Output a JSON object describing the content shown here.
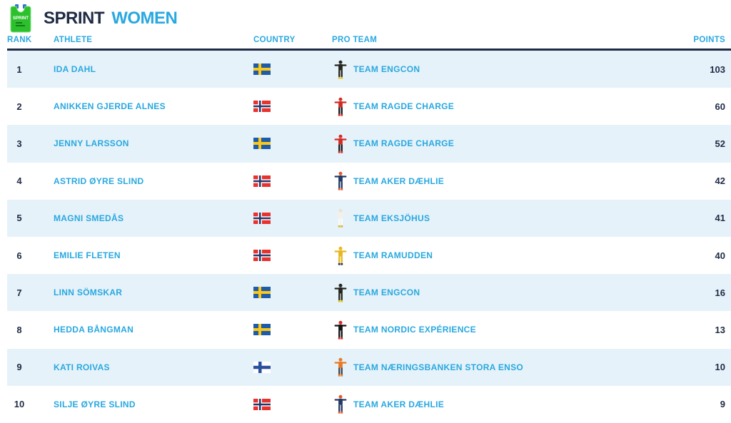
{
  "header": {
    "bib_label": "SPRINT",
    "title_primary": "SPRINT",
    "title_secondary": "WOMEN"
  },
  "colors": {
    "accent_blue": "#29a8e0",
    "navy": "#1f2b45",
    "row_alt_bg": "#e6f2f9",
    "bib_green": "#2cc12c",
    "bib_tab_blue": "#2a6fd6"
  },
  "flags": {
    "sweden": {
      "bg": "#1e5ba8",
      "cross": "#f8c81c"
    },
    "norway": {
      "bg": "#e8322e",
      "outer": "#ffffff",
      "inner": "#26376b"
    },
    "finland": {
      "bg": "#ffffff",
      "cross": "#2b4f9f"
    }
  },
  "table": {
    "columns": [
      "RANK",
      "ATHLETE",
      "COUNTRY",
      "PRO TEAM",
      "POINTS"
    ],
    "rows": [
      {
        "rank": "1",
        "athlete": "IDA DAHL",
        "country": "sweden",
        "team": "TEAM ENGCON",
        "points": "103",
        "icon": {
          "head": "#26261f",
          "torso": "#26261f",
          "legs": "#26261f",
          "feet": "#e5c51f"
        }
      },
      {
        "rank": "2",
        "athlete": "ANIKKEN GJERDE ALNES",
        "country": "norway",
        "team": "TEAM RAGDE CHARGE",
        "points": "60",
        "icon": {
          "head": "#d42b23",
          "torso": "#d42b23",
          "legs": "#17171a",
          "feet": "#d42b23"
        }
      },
      {
        "rank": "3",
        "athlete": "JENNY LARSSON",
        "country": "sweden",
        "team": "TEAM RAGDE CHARGE",
        "points": "52",
        "icon": {
          "head": "#d42b23",
          "torso": "#d42b23",
          "legs": "#17171a",
          "feet": "#d42b23"
        }
      },
      {
        "rank": "4",
        "athlete": "ASTRID ØYRE SLIND",
        "country": "norway",
        "team": "TEAM AKER DÆHLIE",
        "points": "42",
        "icon": {
          "head": "#e4572e",
          "torso": "#223a66",
          "legs": "#223a66",
          "feet": "#e4572e"
        }
      },
      {
        "rank": "5",
        "athlete": "MAGNI SMEDÅS",
        "country": "norway",
        "team": "TEAM EKSJÖHUS",
        "points": "41",
        "icon": {
          "head": "#e9e4d6",
          "torso": "#f3f1ea",
          "legs": "#fbfaf6",
          "feet": "#d7b52c"
        }
      },
      {
        "rank": "6",
        "athlete": "EMILIE FLETEN",
        "country": "norway",
        "team": "TEAM RAMUDDEN",
        "points": "40",
        "icon": {
          "head": "#e8b71e",
          "torso": "#e8b71e",
          "legs": "#e8b71e",
          "feet": "#20355e"
        }
      },
      {
        "rank": "7",
        "athlete": "LINN SÖMSKAR",
        "country": "sweden",
        "team": "TEAM ENGCON",
        "points": "16",
        "icon": {
          "head": "#26261f",
          "torso": "#26261f",
          "legs": "#26261f",
          "feet": "#e5c51f"
        }
      },
      {
        "rank": "8",
        "athlete": "HEDDA BÅNGMAN",
        "country": "sweden",
        "team": "TEAM NORDIC EXPÉRIENCE",
        "points": "13",
        "icon": {
          "head": "#d42b23",
          "torso": "#141416",
          "legs": "#141416",
          "feet": "#d42b23"
        }
      },
      {
        "rank": "9",
        "athlete": "KATI ROIVAS",
        "country": "finland",
        "team": "TEAM NÆRINGSBANKEN STORA ENSO",
        "points": "10",
        "icon": {
          "head": "#e87a26",
          "torso": "#e87a26",
          "legs": "#46464a",
          "feet": "#e87a26"
        }
      },
      {
        "rank": "10",
        "athlete": "SILJE ØYRE SLIND",
        "country": "norway",
        "team": "TEAM AKER DÆHLIE",
        "points": "9",
        "icon": {
          "head": "#e4572e",
          "torso": "#223a66",
          "legs": "#223a66",
          "feet": "#e4572e"
        }
      }
    ]
  }
}
